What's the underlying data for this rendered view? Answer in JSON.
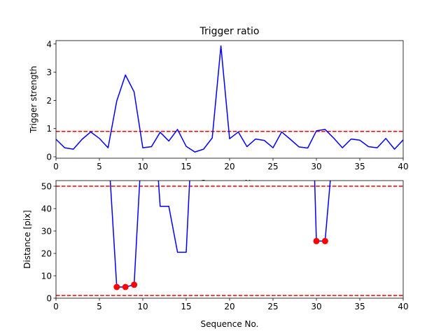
{
  "chart_data": [
    {
      "type": "line",
      "title": "Trigger ratio",
      "xlabel": "Sequence No.",
      "ylabel": "Trigger strength",
      "xlim": [
        0,
        40
      ],
      "ylim": [
        -0.05,
        4.12
      ],
      "xticks": [
        0,
        5,
        10,
        15,
        20,
        25,
        30,
        35,
        40
      ],
      "yticks": [
        0,
        1,
        2,
        3,
        4
      ],
      "grid": false,
      "series": [
        {
          "color": "#0000ff",
          "x": [
            0,
            1,
            2,
            3,
            4,
            5,
            6,
            7,
            8,
            9,
            10,
            11,
            12,
            13,
            14,
            15,
            16,
            17,
            18,
            19,
            20,
            21,
            22,
            23,
            24,
            25,
            26,
            27,
            28,
            29,
            30,
            31,
            32,
            33,
            34,
            35,
            36,
            37,
            38,
            39,
            40
          ],
          "y": [
            0.62,
            0.32,
            0.27,
            0.62,
            0.88,
            0.65,
            0.32,
            1.98,
            2.9,
            2.3,
            0.32,
            0.36,
            0.87,
            0.56,
            0.97,
            0.37,
            0.17,
            0.27,
            0.67,
            3.93,
            0.64,
            0.88,
            0.36,
            0.63,
            0.58,
            0.32,
            0.88,
            0.62,
            0.35,
            0.31,
            0.92,
            0.97,
            0.66,
            0.32,
            0.63,
            0.59,
            0.36,
            0.32,
            0.65,
            0.27,
            0.6
          ]
        }
      ],
      "hlines": [
        {
          "y": 0.9,
          "color": "#ff0000",
          "style": "dashed"
        }
      ]
    },
    {
      "type": "line",
      "title": "",
      "xlabel": "Sequence No.",
      "ylabel": "Distance [pix]",
      "xlim": [
        0,
        40
      ],
      "ylim": [
        0,
        52.5
      ],
      "xticks": [
        0,
        5,
        10,
        15,
        20,
        25,
        30,
        35,
        40
      ],
      "yticks": [
        0,
        10,
        20,
        30,
        40,
        50
      ],
      "grid": false,
      "series": [
        {
          "color": "#0000ff",
          "x": [
            6.25,
            7,
            8,
            9,
            9.65,
            11.8,
            12,
            13,
            14,
            15,
            15.4,
            29.8,
            30,
            31,
            31.6
          ],
          "y": [
            52.5,
            5,
            5,
            6,
            52.5,
            52.5,
            41,
            41,
            20.5,
            20.5,
            52.5,
            52.5,
            25.5,
            25.5,
            52.5
          ],
          "segments": [
            [
              0,
              1,
              2,
              3,
              4
            ],
            [
              5,
              6,
              7,
              8,
              9,
              10
            ],
            [
              11,
              12,
              13,
              14
            ]
          ]
        }
      ],
      "points": {
        "color": "#ff0000",
        "x": [
          7,
          8,
          9,
          30,
          31
        ],
        "y": [
          5,
          5,
          6,
          25.5,
          25.5
        ]
      },
      "hlines": [
        {
          "y": 50,
          "color": "#ff0000",
          "style": "dashed"
        },
        {
          "y": 1.2,
          "color": "#ff0000",
          "style": "dashed"
        }
      ]
    }
  ]
}
